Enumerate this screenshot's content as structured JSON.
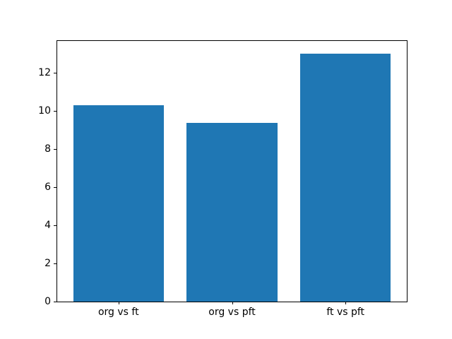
{
  "figure": {
    "background": "#ffffff"
  },
  "chart_data": {
    "type": "bar",
    "title": "",
    "xlabel": "",
    "ylabel": "",
    "categories": [
      "org vs ft",
      "org vs pft",
      "ft vs pft"
    ],
    "x": [
      0,
      1,
      2
    ],
    "values": [
      10.3,
      9.35,
      13.0
    ],
    "bar_width": 0.8,
    "bar_color": "#1f77b4",
    "xlim": [
      -0.54,
      2.54
    ],
    "ylim": [
      0,
      13.65
    ],
    "yticks": [
      0,
      2,
      4,
      6,
      8,
      10,
      12
    ],
    "grid": false,
    "legend": null,
    "spine_color": "#000000",
    "text_color": "#000000",
    "background": "#ffffff"
  }
}
